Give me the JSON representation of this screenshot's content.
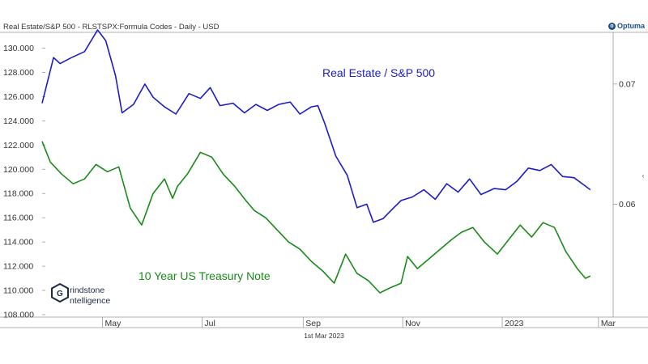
{
  "header": {
    "title": "Real Estate/S&P 500 - RLSTSPX:Formula Codes - Daily - USD",
    "brand": "Optuma"
  },
  "footer": {
    "date_label": "1st Mar 2023"
  },
  "logo": {
    "line1": "rindstone",
    "line2": "ntelligence",
    "mark": "G"
  },
  "colors": {
    "real_estate": "#1c1cc8",
    "treasury": "#1a8a1a",
    "axis": "#999999",
    "text": "#333333"
  },
  "chart_data": {
    "type": "line",
    "x_ticks": [
      "May",
      "Jul",
      "Sep",
      "Nov",
      "2023",
      "Mar"
    ],
    "left_axis": {
      "ticks": [
        "130.000",
        "128.000",
        "126.000",
        "124.000",
        "122.000",
        "120.000",
        "118.000",
        "116.000",
        "114.000",
        "112.000",
        "110.000",
        "108.000"
      ],
      "range": [
        107.8,
        131.3
      ]
    },
    "right_axis": {
      "ticks": [
        "0.07",
        "0.06"
      ],
      "range": [
        0.0506,
        0.0743
      ]
    },
    "series": [
      {
        "name": "Real Estate / S&P 500",
        "axis": "right",
        "color": "#1c1cc8",
        "x": [
          "2022-03-25",
          "2022-04-01",
          "2022-04-05",
          "2022-04-12",
          "2022-04-20",
          "2022-04-28",
          "2022-05-03",
          "2022-05-09",
          "2022-05-13",
          "2022-05-20",
          "2022-05-27",
          "2022-06-01",
          "2022-06-08",
          "2022-06-15",
          "2022-06-23",
          "2022-06-30",
          "2022-07-06",
          "2022-07-12",
          "2022-07-20",
          "2022-07-27",
          "2022-08-03",
          "2022-08-10",
          "2022-08-17",
          "2022-08-24",
          "2022-08-30",
          "2022-09-06",
          "2022-09-10",
          "2022-09-14",
          "2022-09-21",
          "2022-09-28",
          "2022-10-04",
          "2022-10-10",
          "2022-10-14",
          "2022-10-20",
          "2022-10-25",
          "2022-10-31",
          "2022-11-07",
          "2022-11-14",
          "2022-11-21",
          "2022-11-28",
          "2022-12-05",
          "2022-12-12",
          "2022-12-19",
          "2022-12-27",
          "2023-01-03",
          "2023-01-10",
          "2023-01-17",
          "2023-01-24",
          "2023-01-31",
          "2023-02-07",
          "2023-02-14",
          "2023-02-21",
          "2023-02-24"
        ],
        "y": [
          0.0684,
          0.0722,
          0.0717,
          0.0722,
          0.0727,
          0.0745,
          0.0736,
          0.0707,
          0.0676,
          0.0683,
          0.07,
          0.0689,
          0.0681,
          0.0675,
          0.0692,
          0.0688,
          0.0697,
          0.0682,
          0.0684,
          0.0676,
          0.0683,
          0.0678,
          0.0683,
          0.0685,
          0.0675,
          0.0681,
          0.0682,
          0.0668,
          0.064,
          0.0624,
          0.0597,
          0.06,
          0.0585,
          0.0588,
          0.0595,
          0.0603,
          0.0606,
          0.0612,
          0.0604,
          0.0617,
          0.061,
          0.0621,
          0.0608,
          0.0613,
          0.0612,
          0.0619,
          0.063,
          0.0628,
          0.0633,
          0.0623,
          0.0622,
          0.0615,
          0.0612
        ]
      },
      {
        "name": "10 Year US Treasury Note",
        "axis": "left",
        "color": "#1a8a1a",
        "x": [
          "2022-03-25",
          "2022-03-30",
          "2022-04-06",
          "2022-04-13",
          "2022-04-20",
          "2022-04-27",
          "2022-05-04",
          "2022-05-11",
          "2022-05-18",
          "2022-05-25",
          "2022-06-01",
          "2022-06-08",
          "2022-06-13",
          "2022-06-16",
          "2022-06-22",
          "2022-06-30",
          "2022-07-07",
          "2022-07-14",
          "2022-07-21",
          "2022-07-28",
          "2022-08-02",
          "2022-08-09",
          "2022-08-16",
          "2022-08-23",
          "2022-08-30",
          "2022-09-06",
          "2022-09-13",
          "2022-09-20",
          "2022-09-27",
          "2022-10-04",
          "2022-10-11",
          "2022-10-18",
          "2022-10-24",
          "2022-10-31",
          "2022-11-04",
          "2022-11-10",
          "2022-11-17",
          "2022-11-24",
          "2022-12-01",
          "2022-12-07",
          "2022-12-14",
          "2022-12-21",
          "2022-12-29",
          "2023-01-05",
          "2023-01-12",
          "2023-01-19",
          "2023-01-26",
          "2023-02-02",
          "2023-02-09",
          "2023-02-16",
          "2023-02-21",
          "2023-02-24"
        ],
        "y": [
          122.3,
          120.6,
          119.6,
          118.8,
          119.2,
          120.4,
          119.8,
          120.2,
          116.8,
          115.4,
          118.0,
          119.2,
          117.6,
          118.6,
          119.6,
          121.4,
          121.0,
          119.6,
          118.6,
          117.4,
          116.6,
          116.0,
          115.0,
          114.0,
          113.4,
          112.4,
          111.6,
          110.6,
          113.0,
          111.4,
          110.8,
          109.8,
          110.2,
          110.6,
          112.8,
          111.8,
          112.6,
          113.4,
          114.2,
          114.8,
          115.2,
          114.0,
          113.0,
          114.2,
          115.4,
          114.4,
          115.6,
          115.2,
          113.2,
          111.8,
          111.0,
          111.2
        ]
      }
    ],
    "annotations": [
      {
        "text": "Real Estate / S&P 500",
        "color": "#1c1cc8"
      },
      {
        "text": "10 Year US Treasury Note",
        "color": "#1a8a1a"
      }
    ]
  }
}
